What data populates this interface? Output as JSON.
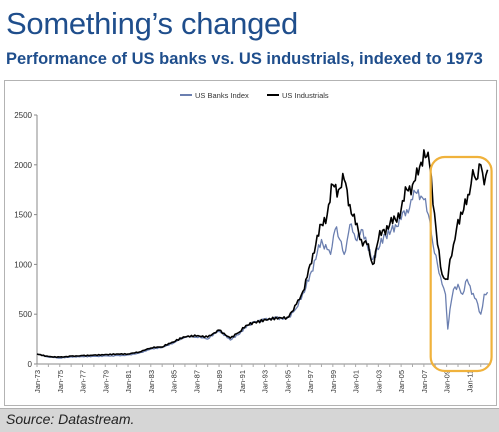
{
  "title": "Something’s changed",
  "subtitle": "Performance of US banks vs. US industrials, indexed to 1973",
  "source": "Source: Datastream.",
  "colors": {
    "banks": "#6b7fb0",
    "industrials": "#000000",
    "highlight": "#f0b23c",
    "title": "#1f4e8c"
  },
  "chart_data": {
    "type": "line",
    "title": "",
    "xlabel": "",
    "ylabel": "",
    "ylim": [
      0,
      2500
    ],
    "yticks": [
      "0",
      "500",
      "1000",
      "1500",
      "2000",
      "2500"
    ],
    "xticks": [
      "Jan-73",
      "Jan-75",
      "Jan-77",
      "Jan-79",
      "Jan-81",
      "Jan-83",
      "Jan-85",
      "Jan-87",
      "Jan-89",
      "Jan-91",
      "Jan-93",
      "Jan-95",
      "Jan-97",
      "Jan-99",
      "Jan-01",
      "Jan-03",
      "Jan-05",
      "Jan-07",
      "Jan-09",
      "Jan-11"
    ],
    "xlim": [
      1973.0,
      2012.9
    ],
    "grid": false,
    "legend": "top-center",
    "annotation": "highlight ellipse around 2008-2012",
    "series": [
      {
        "name": "US Banks Index",
        "x": [
          1973,
          1974,
          1975,
          1976,
          1977,
          1978,
          1979,
          1980,
          1981,
          1982,
          1983,
          1984,
          1985,
          1986,
          1987,
          1988,
          1989,
          1990,
          1990.8,
          1991.5,
          1992,
          1993,
          1994,
          1995,
          1995.8,
          1996.5,
          1997,
          1997.5,
          1998,
          1998.5,
          1998.8,
          1999.2,
          1999.6,
          2000,
          2000.5,
          2001,
          2001.5,
          2002,
          2002.5,
          2003,
          2003.5,
          2004,
          2004.5,
          2005,
          2005.5,
          2006,
          2006.5,
          2007,
          2007.4,
          2007.8,
          2008.2,
          2008.6,
          2008.9,
          2009.1,
          2009.3,
          2009.6,
          2010,
          2010.4,
          2010.8,
          2011.2,
          2011.6,
          2012,
          2012.3,
          2012.6
        ],
        "values": [
          100,
          70,
          60,
          72,
          75,
          78,
          82,
          85,
          90,
          110,
          150,
          165,
          210,
          270,
          270,
          250,
          330,
          240,
          300,
          390,
          420,
          450,
          470,
          460,
          560,
          720,
          900,
          1050,
          1250,
          1150,
          1100,
          1350,
          1250,
          1100,
          1400,
          1250,
          1350,
          1200,
          1050,
          1150,
          1300,
          1300,
          1400,
          1450,
          1550,
          1650,
          1750,
          1650,
          1500,
          1200,
          1000,
          800,
          700,
          350,
          550,
          750,
          800,
          700,
          850,
          700,
          650,
          500,
          700,
          720
        ]
      },
      {
        "name": "US Industrials",
        "x": [
          1973,
          1974,
          1975,
          1976,
          1977,
          1978,
          1979,
          1980,
          1981,
          1982,
          1983,
          1984,
          1985,
          1986,
          1987,
          1988,
          1989,
          1990,
          1990.8,
          1991.5,
          1992,
          1993,
          1994,
          1995,
          1995.8,
          1996.5,
          1997,
          1997.5,
          1998,
          1998.5,
          1999,
          1999.5,
          2000,
          2000.5,
          2001,
          2001.5,
          2002,
          2002.5,
          2003,
          2003.5,
          2004,
          2004.5,
          2005,
          2005.5,
          2006,
          2006.5,
          2007,
          2007.5,
          2007.8,
          2008.2,
          2008.6,
          2008.9,
          2009.1,
          2009.3,
          2009.6,
          2010,
          2010.5,
          2011,
          2011.3,
          2011.6,
          2012,
          2012.3,
          2012.6
        ],
        "values": [
          100,
          75,
          70,
          80,
          85,
          90,
          95,
          100,
          100,
          120,
          160,
          170,
          220,
          270,
          280,
          270,
          340,
          260,
          320,
          390,
          420,
          450,
          470,
          470,
          600,
          750,
          1000,
          1200,
          1400,
          1500,
          1800,
          1750,
          1850,
          1600,
          1400,
          1250,
          1200,
          1000,
          1250,
          1350,
          1400,
          1450,
          1550,
          1750,
          1800,
          1900,
          2150,
          2000,
          1600,
          1200,
          900,
          850,
          850,
          1050,
          1200,
          1450,
          1550,
          1700,
          1950,
          1850,
          2000,
          1800,
          1950
        ]
      }
    ]
  }
}
